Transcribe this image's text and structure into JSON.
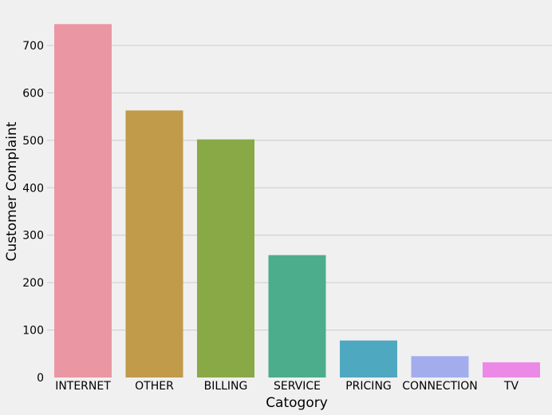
{
  "chart_data": {
    "type": "bar",
    "categories": [
      "INTERNET",
      "OTHER",
      "BILLING",
      "SERVICE",
      "PRICING",
      "CONNECTION",
      "TV"
    ],
    "values": [
      745,
      563,
      502,
      258,
      78,
      45,
      32
    ],
    "colors": [
      "#ea96a3",
      "#c19a4a",
      "#89a946",
      "#4cad8c",
      "#4ea8c0",
      "#a3aded",
      "#ec89e6"
    ],
    "xlabel": "Catogory",
    "ylabel": "Customer Complaint",
    "ylim": [
      0,
      760
    ],
    "yticks": [
      0,
      100,
      200,
      300,
      400,
      500,
      600,
      700
    ],
    "grid": "horizontal",
    "background": "#f0f0f0",
    "gridline_color": "#cbcbcb"
  }
}
